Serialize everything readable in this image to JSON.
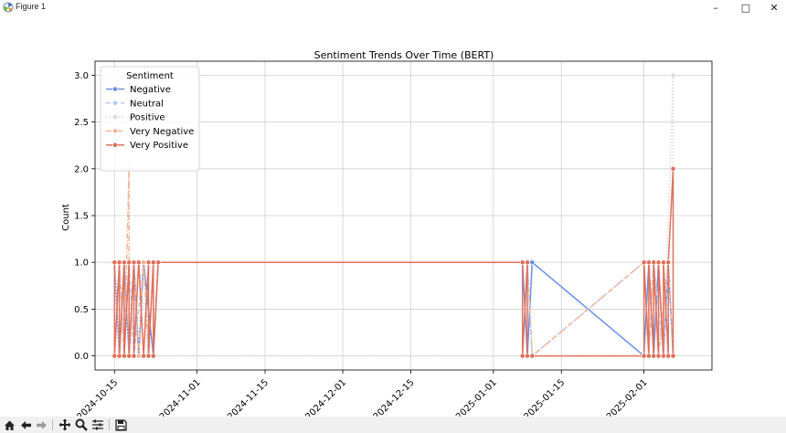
{
  "window": {
    "title": "Figure 1",
    "controls": {
      "minimize": "–",
      "maximize": "□",
      "close": "✕"
    }
  },
  "toolbar": {
    "buttons": [
      "home-icon",
      "back-icon",
      "forward-icon",
      "pan-icon",
      "zoom-icon",
      "configure-subplots-icon",
      "save-icon"
    ]
  },
  "chart_data": {
    "type": "line",
    "title": "Sentiment Trends Over Time (BERT)",
    "xlabel": "",
    "ylabel": "Count",
    "x_ticks": [
      "2024-10-15",
      "2024-11-01",
      "2024-11-15",
      "2024-12-01",
      "2024-12-15",
      "2025-01-01",
      "2025-01-15",
      "2025-02-01"
    ],
    "y_ticks": [
      "0.0",
      "0.5",
      "1.0",
      "1.5",
      "2.0",
      "2.5",
      "3.0"
    ],
    "xlim": [
      "2024-10-11",
      "2025-02-15"
    ],
    "ylim": [
      -0.15,
      3.15
    ],
    "grid": true,
    "legend": {
      "title": "Sentiment",
      "position": "top-left"
    },
    "series": [
      {
        "name": "Negative",
        "color": "#6b8fe6",
        "style": "solid",
        "points": [
          [
            "2024-10-15",
            1
          ],
          [
            "2024-10-16",
            0
          ],
          [
            "2024-10-17",
            1
          ],
          [
            "2024-10-18",
            0
          ],
          [
            "2024-10-19",
            1
          ],
          [
            "2024-10-20",
            0
          ],
          [
            "2024-10-21",
            1
          ],
          [
            "2024-10-23",
            0
          ],
          [
            "2024-10-24",
            1
          ],
          [
            "2025-01-07",
            1
          ],
          [
            "2025-01-08",
            0
          ],
          [
            "2025-01-09",
            1
          ],
          [
            "2025-02-01",
            0
          ],
          [
            "2025-02-02",
            1
          ],
          [
            "2025-02-03",
            0
          ],
          [
            "2025-02-04",
            1
          ],
          [
            "2025-02-05",
            0
          ],
          [
            "2025-02-06",
            1
          ],
          [
            "2025-02-07",
            0
          ]
        ]
      },
      {
        "name": "Neutral",
        "color": "#b4c8f2",
        "style": "dashed",
        "points": [
          [
            "2024-10-15",
            0
          ],
          [
            "2024-10-16",
            1
          ],
          [
            "2024-10-17",
            0
          ],
          [
            "2024-10-18",
            1
          ],
          [
            "2024-10-19",
            0
          ],
          [
            "2024-10-21",
            1
          ],
          [
            "2024-10-23",
            1
          ],
          [
            "2025-01-08",
            1
          ],
          [
            "2025-01-09",
            0
          ],
          [
            "2025-02-01",
            1
          ],
          [
            "2025-02-02",
            0
          ],
          [
            "2025-02-03",
            1
          ],
          [
            "2025-02-05",
            0
          ],
          [
            "2025-02-06",
            1
          ]
        ]
      },
      {
        "name": "Positive",
        "color": "#dadada",
        "style": "dotted",
        "points": [
          [
            "2024-10-15",
            1
          ],
          [
            "2024-10-16",
            0
          ],
          [
            "2024-10-17",
            1
          ],
          [
            "2024-10-18",
            0
          ],
          [
            "2024-10-20",
            1
          ],
          [
            "2024-10-22",
            0
          ],
          [
            "2025-01-08",
            0
          ],
          [
            "2025-02-01",
            0
          ],
          [
            "2025-02-03",
            1
          ],
          [
            "2025-02-05",
            0
          ],
          [
            "2025-02-07",
            3
          ],
          [
            "2025-02-07",
            0
          ]
        ]
      },
      {
        "name": "Very Negative",
        "color": "#f2b396",
        "style": "dashdot",
        "points": [
          [
            "2024-10-15",
            0
          ],
          [
            "2024-10-16",
            1
          ],
          [
            "2024-10-17",
            0
          ],
          [
            "2024-10-18",
            2
          ],
          [
            "2024-10-18",
            0
          ],
          [
            "2024-10-19",
            1
          ],
          [
            "2024-10-20",
            0
          ],
          [
            "2024-10-21",
            1
          ],
          [
            "2024-10-22",
            0
          ],
          [
            "2024-10-23",
            1
          ],
          [
            "2025-01-08",
            1
          ],
          [
            "2025-01-09",
            0
          ],
          [
            "2025-02-01",
            1
          ],
          [
            "2025-02-02",
            0
          ],
          [
            "2025-02-03",
            1
          ],
          [
            "2025-02-04",
            0
          ],
          [
            "2025-02-06",
            1
          ],
          [
            "2025-02-07",
            0
          ]
        ]
      },
      {
        "name": "Very Positive",
        "color": "#e0705a",
        "style": "solid",
        "points": [
          [
            "2024-10-15",
            1
          ],
          [
            "2024-10-15",
            0
          ],
          [
            "2024-10-16",
            1
          ],
          [
            "2024-10-16",
            0
          ],
          [
            "2024-10-17",
            1
          ],
          [
            "2024-10-17",
            0
          ],
          [
            "2024-10-18",
            1
          ],
          [
            "2024-10-18",
            0
          ],
          [
            "2024-10-19",
            1
          ],
          [
            "2024-10-19",
            0
          ],
          [
            "2024-10-20",
            1
          ],
          [
            "2024-10-21",
            0
          ],
          [
            "2024-10-22",
            1
          ],
          [
            "2024-10-22",
            0
          ],
          [
            "2024-10-23",
            1
          ],
          [
            "2024-10-23",
            0
          ],
          [
            "2024-10-24",
            1
          ],
          [
            "2025-01-07",
            1
          ],
          [
            "2025-01-07",
            0
          ],
          [
            "2025-01-08",
            1
          ],
          [
            "2025-01-08",
            0
          ],
          [
            "2025-01-09",
            0
          ],
          [
            "2025-02-01",
            0
          ],
          [
            "2025-02-01",
            1
          ],
          [
            "2025-02-02",
            0
          ],
          [
            "2025-02-02",
            1
          ],
          [
            "2025-02-03",
            0
          ],
          [
            "2025-02-03",
            1
          ],
          [
            "2025-02-04",
            0
          ],
          [
            "2025-02-04",
            1
          ],
          [
            "2025-02-05",
            0
          ],
          [
            "2025-02-05",
            1
          ],
          [
            "2025-02-06",
            0
          ],
          [
            "2025-02-06",
            1
          ],
          [
            "2025-02-07",
            2
          ],
          [
            "2025-02-07",
            0
          ]
        ]
      }
    ]
  }
}
